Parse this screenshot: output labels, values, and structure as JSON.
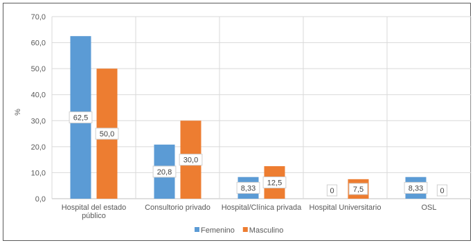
{
  "chart_data": {
    "type": "bar",
    "ylabel": "%",
    "ylim": [
      0,
      70
    ],
    "yticks": [
      "0,0",
      "10,0",
      "20,0",
      "30,0",
      "40,0",
      "50,0",
      "60,0",
      "70,0"
    ],
    "categories": [
      [
        "Hospital del estado",
        "público"
      ],
      [
        "Consultorio privado"
      ],
      [
        "Hospital/Clínica privada"
      ],
      [
        "Hospital Universitario"
      ],
      [
        "OSL"
      ]
    ],
    "series": [
      {
        "name": "Femenino",
        "color": "#5b9bd5",
        "values": [
          62.5,
          20.8,
          8.33,
          0,
          8.33
        ],
        "labels": [
          "62,5",
          "20,8",
          "8,33",
          "0",
          "8,33"
        ]
      },
      {
        "name": "Masculino",
        "color": "#ed7d31",
        "values": [
          50.0,
          30.0,
          12.5,
          7.5,
          0
        ],
        "labels": [
          "50,0",
          "30,0",
          "12,5",
          "7,5",
          "0"
        ]
      }
    ],
    "grid": true,
    "legend": "bottom-center"
  }
}
